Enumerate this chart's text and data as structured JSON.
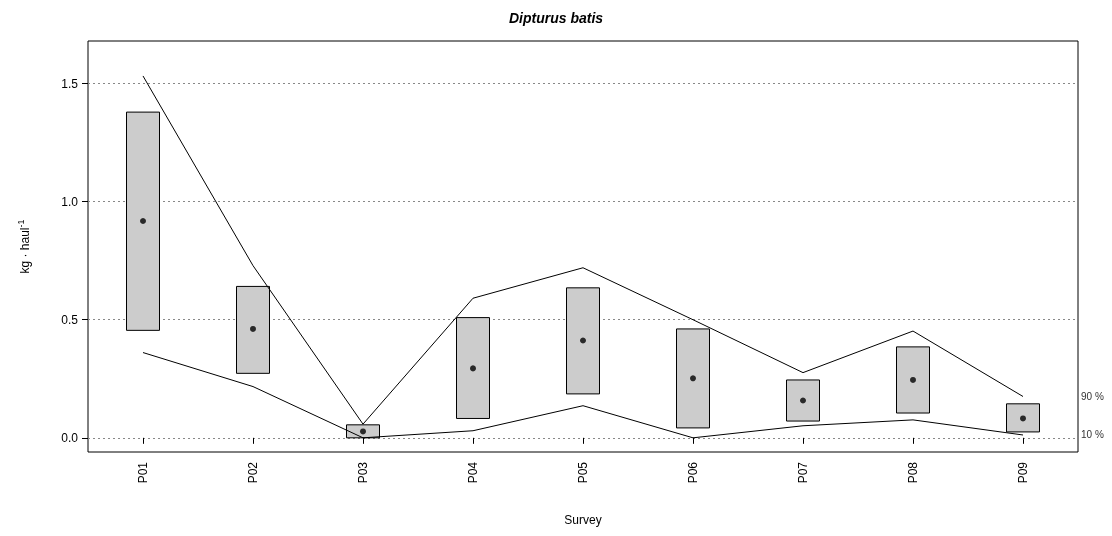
{
  "chart_data": {
    "type": "bar",
    "title": "Dipturus batis",
    "xlabel": "Survey",
    "ylabel": "kg · haul$^{-1}$",
    "categories": [
      "P01",
      "P02",
      "P03",
      "P04",
      "P05",
      "P06",
      "P07",
      "P08",
      "P09"
    ],
    "ylim": [
      -0.06,
      1.68
    ],
    "yticks": [
      {
        "value": 0,
        "label": "0.0"
      },
      0.5,
      {
        "value": 1,
        "label": "1.0"
      },
      1.5
    ],
    "grid": "y",
    "series": [
      {
        "color": "#cccccc",
        "base": [
          0.455,
          0.273,
          0,
          0.082,
          0.186,
          0.042,
          0.071,
          0.105,
          0.025
        ],
        "values": [
          0.924,
          0.368,
          0.055,
          0.427,
          0.449,
          0.419,
          0.174,
          0.28,
          0.119
        ]
      },
      {
        "type": "scatter",
        "color": "#000000",
        "marker": "circle",
        "x": [
          "P01",
          "P02",
          "P03",
          "P04",
          "P05",
          "P06",
          "P07",
          "P08",
          "P09"
        ],
        "values": [
          0.918,
          0.461,
          0.027,
          0.294,
          0.412,
          0.252,
          0.158,
          0.245,
          0.082
        ]
      },
      {
        "type": "line",
        "name": "90 %",
        "color": "#000000",
        "values": [
          1.532,
          0.729,
          0.058,
          0.591,
          0.72,
          0.5,
          0.276,
          0.452,
          0.175
        ]
      },
      {
        "type": "line",
        "name": "10 %",
        "color": "#000000",
        "values": [
          0.361,
          0.217,
          0,
          0.03,
          0.136,
          0,
          0.051,
          0.076,
          0.012
        ]
      }
    ]
  }
}
